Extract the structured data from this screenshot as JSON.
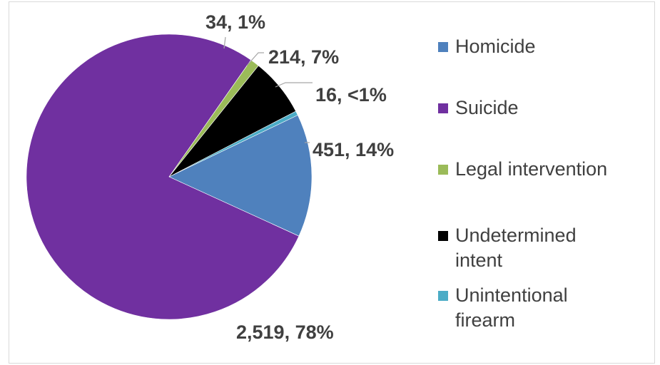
{
  "chart_data": {
    "type": "pie",
    "title": "",
    "slices": [
      {
        "name": "Homicide",
        "value": 451,
        "label": "451, 14%",
        "color": "#4f81bd"
      },
      {
        "name": "Suicide",
        "value": 2519,
        "label": "2,519, 78%",
        "color": "#7030a0"
      },
      {
        "name": "Legal intervention",
        "value": 34,
        "label": "34, 1%",
        "color": "#9bbb59"
      },
      {
        "name": "Undetermined intent",
        "value": 214,
        "label": "214, 7%",
        "color": "#000000"
      },
      {
        "name": "Unintentional firearm",
        "value": 16,
        "label": "16, <1%",
        "color": "#4bacc6"
      }
    ],
    "legend": {
      "position": "right",
      "items": [
        {
          "label": "Homicide",
          "color": "#4f81bd"
        },
        {
          "label": "Suicide",
          "color": "#7030a0"
        },
        {
          "label": "Legal intervention",
          "color": "#9bbb59"
        },
        {
          "label": "Undetermined\nintent",
          "color": "#000000"
        },
        {
          "label": "Unintentional\nfirearm",
          "color": "#4bacc6"
        }
      ]
    }
  }
}
